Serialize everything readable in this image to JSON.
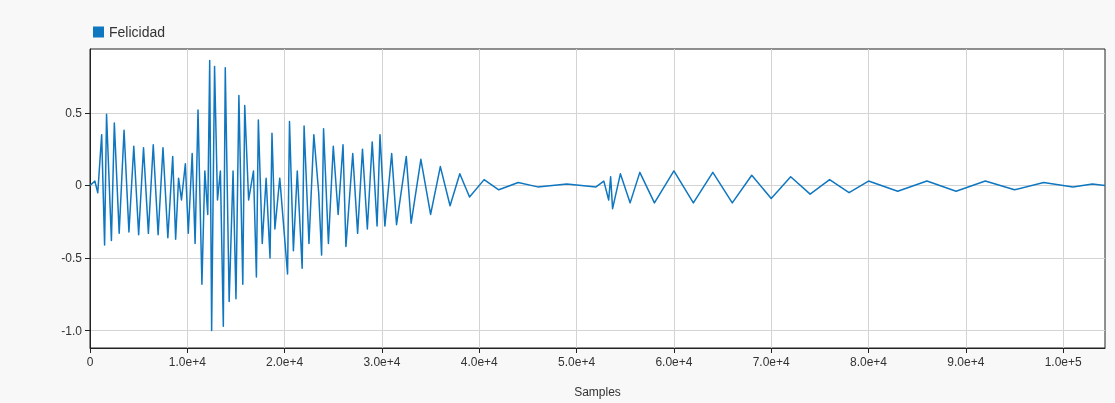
{
  "chart_data": {
    "type": "line",
    "xlabel": "Samples",
    "legend": "top left",
    "grid": true,
    "marker": "none",
    "line_style": "solid",
    "xlim": [
      0,
      104300
    ],
    "xticks": [
      0,
      {
        "value": 10000,
        "label": "1.0e+4"
      },
      {
        "value": 20000,
        "label": "2.0e+4"
      },
      {
        "value": 30000,
        "label": "3.0e+4"
      },
      {
        "value": 40000,
        "label": "4.0e+4"
      },
      {
        "value": 50000,
        "label": "5.0e+4"
      },
      {
        "value": 60000,
        "label": "6.0e+4"
      },
      {
        "value": 70000,
        "label": "7.0e+4"
      },
      {
        "value": 80000,
        "label": "8.0e+4"
      },
      {
        "value": 90000,
        "label": "9.0e+4"
      },
      {
        "value": 100000,
        "label": "1.0e+5"
      }
    ],
    "ylim": [
      -1.12,
      0.94
    ],
    "yticks": [
      {
        "value": -1,
        "label": "-1.0"
      },
      -0.5,
      0,
      0.5
    ],
    "series": [
      {
        "name": "Felicidad",
        "color": "#0f76c0",
        "x": [
          0,
          500,
          800,
          1200,
          1500,
          1700,
          2200,
          2500,
          3000,
          3500,
          4000,
          4500,
          5000,
          5500,
          6000,
          6500,
          7000,
          7500,
          8000,
          8500,
          8800,
          9100,
          9400,
          9800,
          10100,
          10500,
          10800,
          11100,
          11500,
          11800,
          12100,
          12300,
          12500,
          12800,
          13100,
          13400,
          13700,
          13900,
          14300,
          14700,
          15000,
          15300,
          15700,
          15900,
          16300,
          16800,
          17100,
          17300,
          17700,
          18100,
          18500,
          18700,
          19000,
          19500,
          20300,
          20500,
          20900,
          21300,
          21800,
          22000,
          22500,
          23000,
          23500,
          23800,
          24000,
          24500,
          25000,
          25500,
          26000,
          26300,
          27000,
          27500,
          28000,
          28500,
          29000,
          29500,
          29800,
          30300,
          31000,
          31500,
          32500,
          33000,
          34000,
          35000,
          36000,
          37000,
          38000,
          39000,
          40500,
          42000,
          44000,
          46000,
          49000,
          52000,
          52800,
          53300,
          53500,
          53700,
          54500,
          55500,
          56500,
          58000,
          60000,
          62000,
          64000,
          66000,
          68000,
          70000,
          72000,
          74000,
          76000,
          78000,
          80000,
          83000,
          86000,
          89000,
          92000,
          95000,
          98000,
          101000,
          103000,
          104300
        ],
        "values": [
          0,
          0.03,
          -0.05,
          0.35,
          -0.41,
          0.49,
          -0.38,
          0.43,
          -0.33,
          0.38,
          -0.32,
          0.27,
          -0.34,
          0.26,
          -0.33,
          0.28,
          -0.34,
          0.26,
          -0.36,
          0.2,
          -0.37,
          0.05,
          -0.1,
          0.15,
          -0.33,
          0.22,
          -0.4,
          0.52,
          -0.68,
          0.1,
          -0.2,
          0.86,
          -1.0,
          0.82,
          -0.1,
          0.1,
          -0.97,
          0.81,
          -0.8,
          0.1,
          -0.78,
          0.62,
          -0.68,
          0.55,
          -0.1,
          0.1,
          -0.63,
          0.45,
          -0.4,
          0.05,
          -0.5,
          0.36,
          -0.3,
          0.05,
          -0.61,
          0.44,
          -0.45,
          0.1,
          -0.57,
          0.41,
          -0.4,
          0.35,
          -0.05,
          -0.48,
          0.39,
          -0.4,
          0.27,
          -0.2,
          0.28,
          -0.42,
          0.22,
          -0.33,
          0.25,
          -0.3,
          0.3,
          -0.28,
          0.35,
          -0.28,
          0.22,
          -0.27,
          0.2,
          -0.26,
          0.18,
          -0.2,
          0.13,
          -0.14,
          0.08,
          -0.08,
          0.04,
          -0.03,
          0.02,
          -0.01,
          0.01,
          -0.01,
          0.03,
          -0.1,
          0.06,
          -0.16,
          0.08,
          -0.12,
          0.09,
          -0.12,
          0.1,
          -0.12,
          0.09,
          -0.12,
          0.07,
          -0.09,
          0.06,
          -0.06,
          0.04,
          -0.05,
          0.03,
          -0.04,
          0.03,
          -0.04,
          0.03,
          -0.03,
          0.02,
          -0.01,
          0.01,
          0
        ]
      }
    ]
  }
}
